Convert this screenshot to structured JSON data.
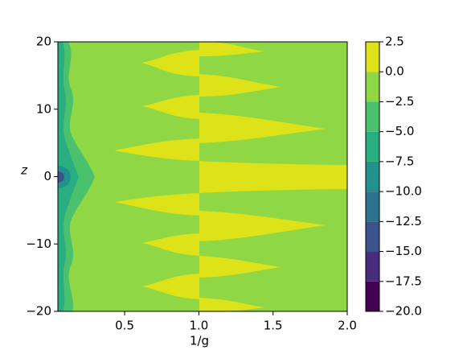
{
  "chart_data": {
    "type": "contour",
    "x_label": "1/g",
    "y_label": "z",
    "xlim": [
      0.05,
      2.0
    ],
    "xticks": [
      0.5,
      {
        "value": 1.0,
        "label": "1.0"
      },
      1.5,
      {
        "value": 2.0,
        "label": "2.0"
      }
    ],
    "ylim": [
      -20,
      20
    ],
    "yticks": [
      {
        "value": -20,
        "label": "−20"
      },
      {
        "value": -10,
        "label": "−10"
      },
      0,
      10,
      20
    ],
    "colorbar": {
      "levels": [
        {
          "value": -20,
          "label": "−20.0"
        },
        {
          "value": -17.5,
          "label": "−17.5"
        },
        {
          "value": -15,
          "label": "−15.0"
        },
        {
          "value": -12.5,
          "label": "−12.5"
        },
        {
          "value": -10,
          "label": "−10.0"
        },
        {
          "value": -7.5,
          "label": "−7.5"
        },
        {
          "value": -5,
          "label": "−5.0"
        },
        {
          "value": -2.5,
          "label": "−2.5"
        },
        {
          "value": 0,
          "label": "0.0"
        },
        2.5
      ],
      "colors": [
        "#440154",
        "#472d7b",
        "#3b528b",
        "#2c728e",
        "#21918c",
        "#28ae80",
        "#4ac16d",
        "#8fd744",
        "#dde318"
      ]
    }
  }
}
